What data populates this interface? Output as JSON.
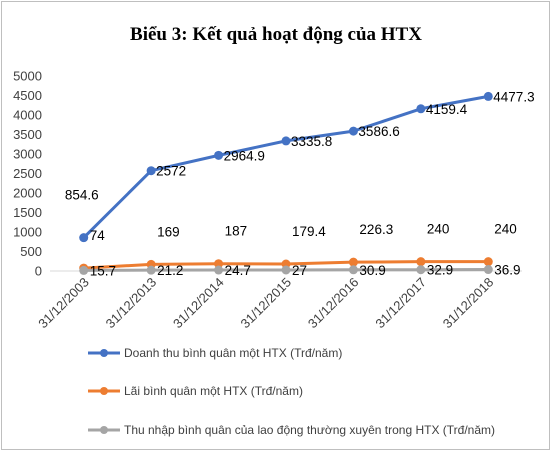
{
  "chart_data": {
    "type": "line",
    "title": "Biểu 3: Kết quả hoạt động của HTX",
    "categories": [
      "31/12/2003",
      "31/12/2013",
      "31/12/2014",
      "31/12/2015",
      "31/12/2016",
      "31/12/2017",
      "31/12/2018"
    ],
    "yticks": [
      "0",
      "500",
      "1000",
      "1500",
      "2000",
      "2500",
      "3000",
      "3500",
      "4000",
      "4500",
      "5000"
    ],
    "ylim": [
      0,
      5000
    ],
    "grid": false,
    "legend_position": "bottom",
    "series": [
      {
        "name": "Doanh thu bình quân một HTX (Trđ/năm)",
        "color": "#4472c4",
        "values": [
          854.6,
          2572,
          2964.9,
          3335.8,
          3586.6,
          4159.4,
          4477.3
        ],
        "labels": [
          "854.6",
          "2572",
          "2964.9",
          "3335.8",
          "3586.6",
          "4159.4",
          "4477.3"
        ]
      },
      {
        "name": "Lãi bình quân một HTX (Trđ/năm)",
        "color": "#ed7d31",
        "values": [
          74,
          169,
          187,
          179.4,
          226.3,
          240,
          240
        ],
        "labels": [
          "74",
          "169",
          "187",
          "179.4",
          "226.3",
          "240",
          "240"
        ]
      },
      {
        "name": "Thu nhập bình quân của lao động thường xuyên trong HTX (Trđ/năm)",
        "color": "#a5a5a5",
        "values": [
          15.7,
          21.2,
          24.7,
          27,
          30.9,
          32.9,
          36.9
        ],
        "labels": [
          "15.7",
          "21.2",
          "24.7",
          "27",
          "30.9",
          "32.9",
          "36.9"
        ]
      }
    ]
  }
}
